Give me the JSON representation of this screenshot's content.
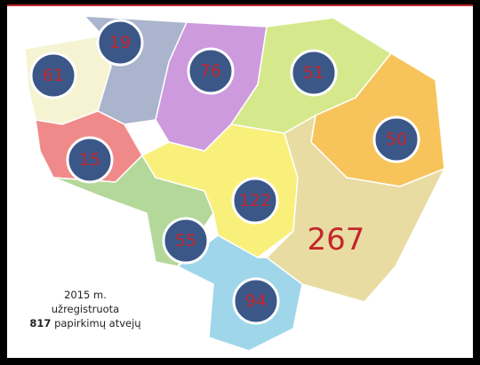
{
  "markers": [
    {
      "value": 19
    },
    {
      "value": 61
    },
    {
      "value": 76
    },
    {
      "value": 51
    },
    {
      "value": 15
    },
    {
      "value": 50
    },
    {
      "value": 122
    },
    {
      "value": 55
    },
    {
      "value": 94
    }
  ],
  "highlight": {
    "value": 267
  },
  "caption": {
    "line1": "2015 m.",
    "line2": "užregistruota",
    "count": 817,
    "line3": "papirkimų atvejų"
  }
}
